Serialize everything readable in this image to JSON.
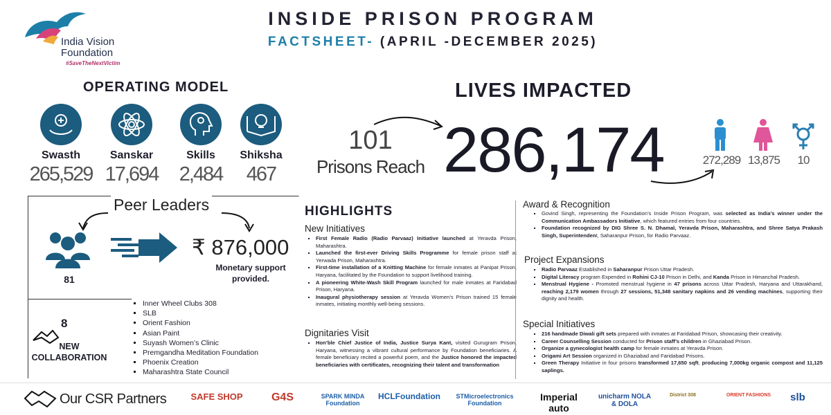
{
  "header": {
    "org_name": "India Vision Foundation",
    "org_tagline": "#SaveTheNextVictim",
    "title": "INSIDE PRISON PROGRAM",
    "subtitle_lead": "FACTSHEET-",
    "subtitle_rest": "(APRIL -DECEMBER 2025)"
  },
  "operating_model": {
    "heading": "OPERATING MODEL",
    "items": [
      {
        "label": "Swasth",
        "value": "265,529"
      },
      {
        "label": "Sanskar",
        "value": "17,694"
      },
      {
        "label": "Skills",
        "value": "2,484"
      },
      {
        "label": "Shiksha",
        "value": "467"
      }
    ]
  },
  "lives_impacted": {
    "heading": "LIVES IMPACTED",
    "prisons_value": "101",
    "prisons_label": "Prisons Reach",
    "total": "286,174",
    "male": "272,289",
    "female": "13,875",
    "transgender": "10"
  },
  "peer_leaders": {
    "heading": "Peer Leaders",
    "count": "81",
    "currency": "₹",
    "amount": "876,000",
    "amount_label": "Monetary support provided."
  },
  "collaboration": {
    "count": "8",
    "label_line1": "NEW",
    "label_line2": "COLLABORATION",
    "partners": [
      "Inner Wheel Clubs 308",
      "SLB",
      "Orient Fashion",
      "Asian Paint",
      "Suyash Women’s Clinic",
      "Premgandha Meditation Foundation",
      "Phoenix Creation",
      "Maharashtra State Council"
    ]
  },
  "highlights": {
    "heading": "HIGHLIGHTS",
    "new_initiatives": {
      "heading": "New  Initiatives",
      "items": [
        [
          {
            "text": "First Female Radio (Radio Parvaaz) Initiative launched",
            "bold": true
          },
          " at Yeravda Prison, Maharashtra."
        ],
        [
          {
            "text": "Launched the first-ever Driving Skills Programme",
            "bold": true
          },
          " for female prison staff at Yerwada Prison, Maharashtra."
        ],
        [
          {
            "text": "First-time installation of a Knitting Machine",
            "bold": true
          },
          " for female inmates at Panipat Prison, Haryana, facilitated by the Foundation to support livelihood training."
        ],
        [
          {
            "text": "A pioneering White-Wash Skill Program",
            "bold": true
          },
          " launched for male inmates at Faridabad Prison, Haryana."
        ],
        [
          {
            "text": "Inaugural physiotherapy session",
            "bold": true
          },
          " at Yeravda Women’s Prison trained 15 female inmates, initiating monthly well-being sessions."
        ]
      ]
    },
    "dignitaries": {
      "heading": "Dignitaries Visit",
      "items": [
        [
          {
            "text": "Hon’ble Chief Justice of India, Justice Surya Kant,",
            "bold": true
          },
          " visited Gurugram Prison, Haryana, witnessing a vibrant cultural performance by Foundation beneficiaries. A female beneficiary recited a powerful poem, and the ",
          {
            "text": "Justice honored the impacted beneficiaries with certificates, recognizing their talent and transformation",
            "bold": true
          }
        ]
      ]
    }
  },
  "award": {
    "heading": "Award & Recognition",
    "items": [
      [
        "Govind Singh, representing the Foundation’s Inside Prison Program, was ",
        {
          "text": "selected as India’s winner under the Communication Ambassadors Initiative",
          "bold": true
        },
        ", which featured entries from four countries."
      ],
      [
        {
          "text": "Foundation recognized by DIG Shree S. N. Dhamal, Yeravda Prison, Maharashtra, and Shree Satya Prakash Singh, Superintenden",
          "bold": true
        },
        "t, Saharanpur Prison, for Radio Parvaaz."
      ]
    ]
  },
  "project_expansions": {
    "heading": "Project Expansions",
    "items": [
      [
        {
          "text": "Radio Parvaaz",
          "bold": true
        },
        " Established in ",
        {
          "text": "Saharanpur",
          "bold": true
        },
        " Prison Uttar Pradesh."
      ],
      [
        {
          "text": "Digital Literacy",
          "bold": true
        },
        " program Expended in ",
        {
          "text": "Rohini CJ-10",
          "bold": true
        },
        " Prison in Delhi, and ",
        {
          "text": "Kanda",
          "bold": true
        },
        " Prison in Himanchal Pradesh."
      ],
      [
        {
          "text": "Menstrual Hygiene -",
          "bold": true
        },
        " Promoted menstrual hygiene in ",
        {
          "text": "47 prisons",
          "bold": true
        },
        " across Uttar Pradesh, Haryana and Uttarakhand, ",
        {
          "text": "reaching 2,179 women",
          "bold": true
        },
        " through ",
        {
          "text": "27 sessions, 51,348 sanitary napkins and 26 vending machines",
          "bold": true
        },
        ", supporting their dignity and health."
      ]
    ]
  },
  "special_initiatives": {
    "heading": "Special Initiatives",
    "items": [
      [
        {
          "text": "216 handmade Diwali gift sets",
          "bold": true
        },
        " prepared with inmates at Faridabad Prison, showcasing their creativity."
      ],
      [
        {
          "text": "Career Counselling Session",
          "bold": true
        },
        " conducted for ",
        {
          "text": "Prison staff’s children",
          "bold": true
        },
        " in Ghaziabad Prison."
      ],
      [
        {
          "text": "Organize a gynecologist health camp",
          "bold": true
        },
        " for female inmates at Yeravda Prison."
      ],
      [
        {
          "text": "Origami Art Session",
          "bold": true
        },
        " organized in Ghaziabad and Faridabad Prisons."
      ],
      [
        {
          "text": "Green Therapy",
          "bold": true
        },
        " Initiative in four prisons ",
        {
          "text": "transformed 17,650 sqft",
          "bold": true
        },
        ", ",
        {
          "text": "producing 7,000kg organic compost and 11,125 saplings.",
          "bold": true
        }
      ]
    ]
  },
  "footer": {
    "heading": "Our CSR Partners",
    "partners": [
      "SAFE SHOP",
      "G4S",
      "SPARK MINDA Foundation",
      "HCLFoundation",
      "STMicroelectronics Foundation",
      "Imperial auto",
      "unicharm NOLA & DOLA",
      "District 308",
      "ORIENT FASHIONS",
      "slb"
    ]
  }
}
